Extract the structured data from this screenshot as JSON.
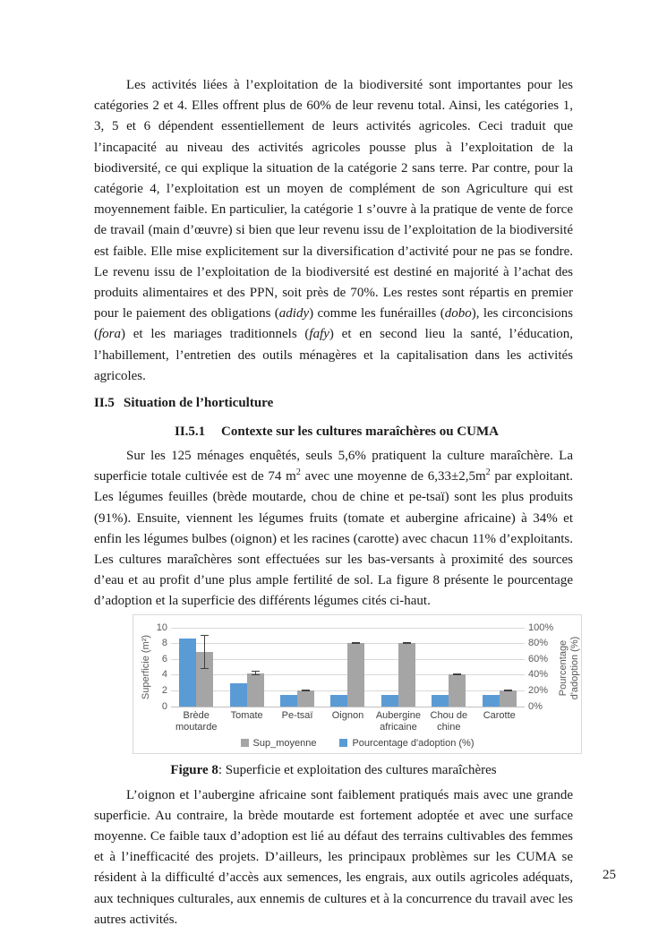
{
  "page_number": "25",
  "section": {
    "number": "II.5",
    "title": "Situation de l’horticulture"
  },
  "subsection": {
    "number": "II.5.1",
    "title": "Contexte sur les cultures maraîchères ou CUMA"
  },
  "paragraph1_segments": [
    {
      "t": "Les activités liées à l’exploitation de la biodiversité sont importantes pour les catégories 2 et 4. Elles offrent plus de 60% de leur revenu total. Ainsi, les catégories 1, 3, 5 et 6 dépendent essentiellement de leurs activités agricoles. Ceci traduit que l’incapacité au niveau des activités agricoles pousse plus à l’exploitation de la biodiversité, ce qui explique la situation de la catégorie 2 sans terre. Par contre, pour la catégorie 4, l’exploitation est un moyen de complément de son Agriculture qui est moyennement faible. En particulier, la catégorie 1 s’ouvre à la pratique de vente de force de travail (main d’œuvre) si bien que leur revenu issu de l’exploitation de la biodiversité est faible. Elle mise explicitement sur la diversification d’activité pour ne pas se fondre. Le revenu issu de l’exploitation de la biodiversité est destiné en majorité à l’achat des produits alimentaires et des PPN, soit près de 70%. Les restes sont répartis en premier pour le paiement des obligations ("
    },
    {
      "t": "adidy",
      "i": true
    },
    {
      "t": ") comme les funérailles ("
    },
    {
      "t": "dobo",
      "i": true
    },
    {
      "t": "), les circoncisions ("
    },
    {
      "t": "fora",
      "i": true
    },
    {
      "t": ") et les mariages traditionnels ("
    },
    {
      "t": "fafy",
      "i": true
    },
    {
      "t": ") et en second lieu la santé, l’éducation, l’habillement, l’entretien des outils ménagères et la capitalisation dans les activités agricoles."
    }
  ],
  "paragraph2_segments": [
    {
      "t": "Sur les 125 ménages enquêtés, seuls 5,6% pratiquent la culture maraîchère. La superficie totale cultivée est de 74 m"
    },
    {
      "t": "2",
      "sup": true
    },
    {
      "t": " avec une moyenne de 6,33±2,5m"
    },
    {
      "t": "2",
      "sup": true
    },
    {
      "t": " par exploitant. Les légumes feuilles (brède moutarde, chou de chine et pe-tsaï) sont les plus produits (91%). Ensuite, viennent les légumes fruits (tomate et aubergine africaine) à 34% et enfin les légumes bulbes (oignon) et les racines (carotte) avec chacun 11% d’exploitants. Les cultures maraîchères sont effectuées sur les bas-versants à proximité des sources d’eau et au profit d’une plus ample fertilité de sol. La figure 8 présente le pourcentage d’adoption et la superficie des différents légumes cités ci-haut."
    }
  ],
  "figure_caption_segments": [
    {
      "t": "Figure 8",
      "b": true
    },
    {
      "t": ": Superficie et exploitation des cultures maraîchères"
    }
  ],
  "paragraph3_segments": [
    {
      "t": "L’oignon et l’aubergine africaine sont faiblement pratiqués mais avec une grande superficie. Au contraire, la brède moutarde est fortement adoptée et avec une surface moyenne. Ce faible taux d’adoption est lié au défaut des terrains cultivables des femmes et à l’inefficacité des projets. D’ailleurs, les principaux problèmes sur les CUMA se résident à la difficulté d’accès aux semences, les engrais, aux outils agricoles adéquats, aux techniques culturales, aux ennemis de cultures et à la concurrence du travail avec les autres activités."
    }
  ],
  "chart_data": {
    "type": "bar",
    "title": "",
    "categories": [
      "Brède moutarde",
      "Tomate",
      "Pe-tsaï",
      "Oignon",
      "Aubergine africaine",
      "Chou de chine",
      "Carotte"
    ],
    "series": [
      {
        "name": "Pourcentage d'adoption (%)",
        "axis": "right",
        "color": "#5B9BD5",
        "values": [
          86,
          29,
          14,
          14,
          14,
          14,
          14
        ]
      },
      {
        "name": "Sup_moyenne",
        "axis": "left",
        "color": "#A5A5A5",
        "values": [
          6.9,
          4.2,
          2.0,
          8.0,
          8.0,
          4.0,
          2.0
        ],
        "error": [
          2.2,
          0.3,
          0.1,
          0.1,
          0.1,
          0.1,
          0.1
        ]
      }
    ],
    "left_axis": {
      "label": "Superficie (m²)",
      "ticks": [
        "10",
        "8",
        "6",
        "4",
        "2",
        "0"
      ],
      "min": 0,
      "max": 10
    },
    "right_axis": {
      "label": "Pourcentage d'adoption (%)",
      "ticks": [
        "100%",
        "80%",
        "60%",
        "40%",
        "20%",
        "0%"
      ],
      "min": 0,
      "max": 100
    },
    "legend": [
      {
        "label": "Sup_moyenne",
        "color": "#A5A5A5"
      },
      {
        "label": "Pourcentage d'adoption (%)",
        "color": "#5B9BD5"
      }
    ],
    "grid": true,
    "legend_position": "bottom",
    "colors": {
      "gridline": "#D9D9D9",
      "axis_text": "#595959",
      "error_bar": "#404040"
    }
  }
}
